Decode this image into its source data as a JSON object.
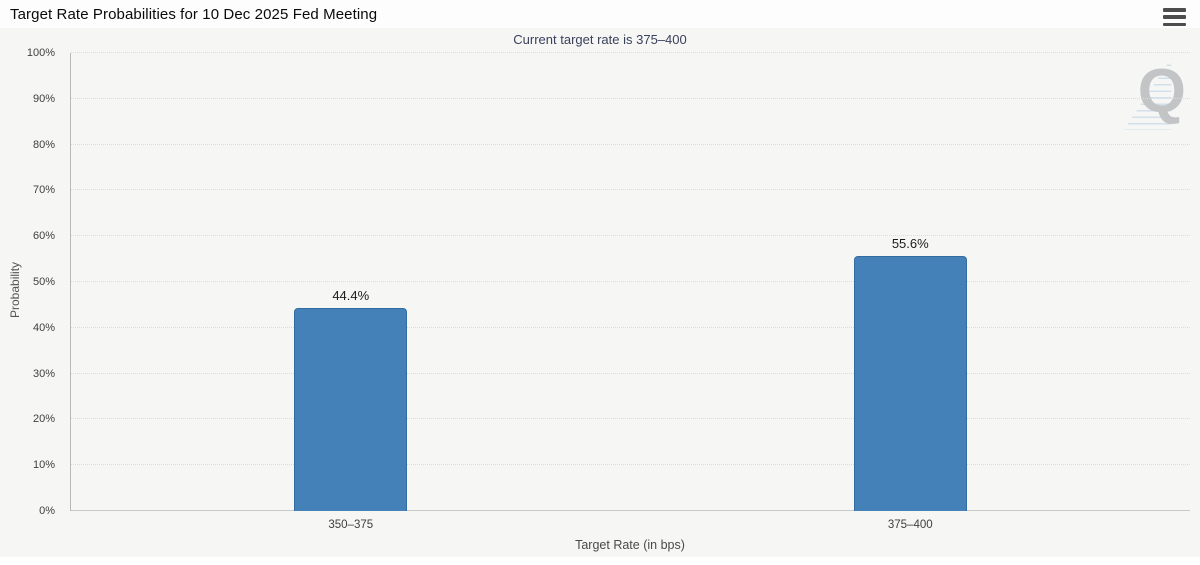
{
  "header": {
    "title": "Target Rate Probabilities for 10 Dec 2025 Fed Meeting",
    "menu_icon": "hamburger-icon"
  },
  "chart": {
    "subtitle": "Current target rate is 375–400",
    "watermark_letter": "Q"
  },
  "chart_data": {
    "type": "bar",
    "title": "Target Rate Probabilities for 10 Dec 2025 Fed Meeting",
    "subtitle": "Current target rate is 375–400",
    "categories": [
      "350–375",
      "375–400"
    ],
    "values": [
      44.4,
      55.6
    ],
    "value_labels": [
      "44.4%",
      "55.6%"
    ],
    "xlabel": "Target Rate (in bps)",
    "ylabel": "Probability",
    "ylim": [
      0,
      100
    ],
    "ytick_step": 10,
    "ytick_labels": [
      "0%",
      "10%",
      "20%",
      "30%",
      "40%",
      "50%",
      "60%",
      "70%",
      "80%",
      "90%",
      "100%"
    ],
    "grid": "horizontal-dotted",
    "legend": "none",
    "bar_color": "#4381b8",
    "bar_border_color": "#336d9f",
    "background_color": "#f6f6f5",
    "subtitle_color": "#3a415a"
  }
}
